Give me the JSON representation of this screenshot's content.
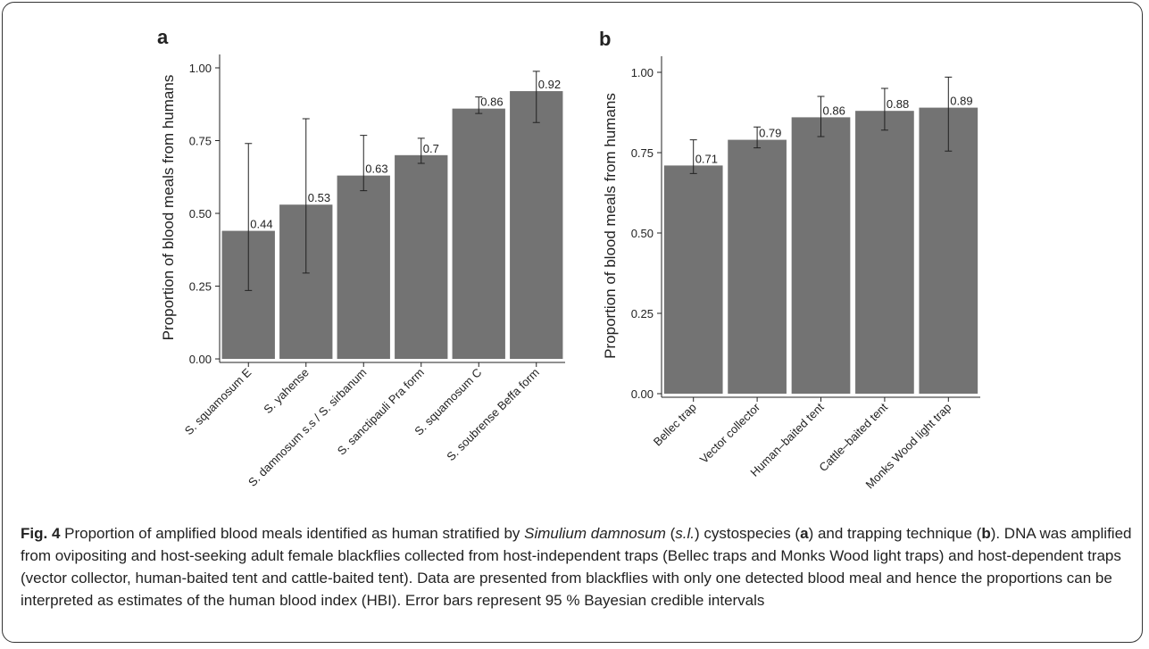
{
  "chart_data": [
    {
      "type": "bar",
      "panel": "a",
      "ylabel": "Proportion of blood meals from humans",
      "categories": [
        "S. squamosum E",
        "S. yahense",
        "S. damnosum s.s / S. sirbanum",
        "S. sanctipauli Pra form",
        "S. squamosum C",
        "S. soubrense Beffa form"
      ],
      "values": [
        0.44,
        0.53,
        0.63,
        0.7,
        0.86,
        0.92
      ],
      "lower": [
        0.235,
        0.295,
        0.578,
        0.672,
        0.843,
        0.812
      ],
      "upper": [
        0.74,
        0.825,
        0.768,
        0.758,
        0.9,
        0.988
      ],
      "color": "#737373",
      "ylim": [
        -0.006,
        1.046
      ],
      "yticks": [
        {
          "value": 0,
          "label": "0.00"
        },
        {
          "value": 0.25,
          "label": "0.25"
        },
        {
          "value": 0.5,
          "label": "0.50"
        },
        {
          "value": 0.75,
          "label": "0.75"
        },
        {
          "value": 1,
          "label": "1.00"
        }
      ]
    },
    {
      "type": "bar",
      "panel": "b",
      "ylabel": "Proportion of blood meals from humans",
      "categories": [
        "Bellec trap",
        "Vector collector",
        "Human–baited tent",
        "Cattle–baited tent",
        "Monks Wood light trap"
      ],
      "values": [
        0.71,
        0.79,
        0.86,
        0.88,
        0.89
      ],
      "lower": [
        0.685,
        0.765,
        0.8,
        0.82,
        0.755
      ],
      "upper": [
        0.79,
        0.83,
        0.925,
        0.95,
        0.985
      ],
      "color": "#737373",
      "ylim": [
        -0.0056,
        1.05
      ],
      "yticks": [
        {
          "value": 0,
          "label": "0.00"
        },
        {
          "value": 0.25,
          "label": "0.25"
        },
        {
          "value": 0.5,
          "label": "0.50"
        },
        {
          "value": 0.75,
          "label": "0.75"
        },
        {
          "value": 1,
          "label": "1.00"
        }
      ]
    }
  ],
  "caption": [
    "Fig. 4",
    " Proportion of amplified blood meals identified as human stratified by ",
    "Simulium damnosum",
    " (",
    "s.l.",
    ") cystospecies (",
    "a",
    ") and trapping technique (",
    "b",
    "). DNA was amplified from ovipositing and host-seeking adult female blackflies collected from host-independent traps (Bellec traps and Monks Wood light traps) and host-dependent traps (vector collector, human-baited tent and cattle-baited tent). Data are presented from blackflies with only one detected blood meal and hence the proportions can be interpreted as estimates of the human blood index (HBI). Error bars represent 95 % Bayesian credible intervals"
  ]
}
